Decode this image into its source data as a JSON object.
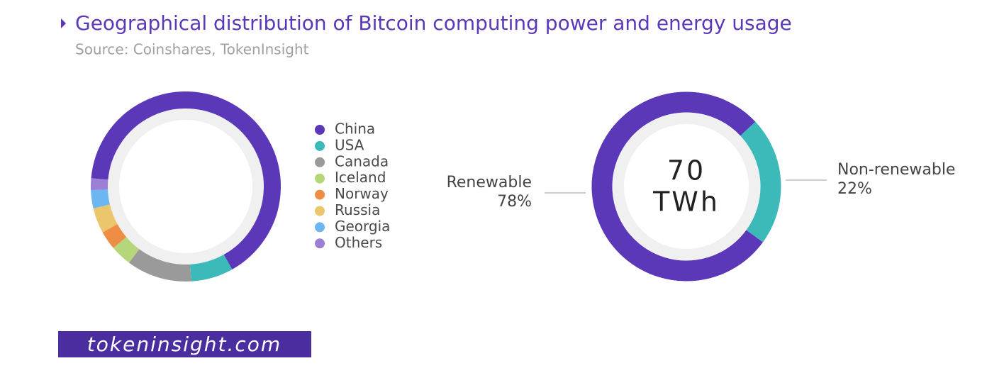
{
  "header": {
    "title": "Geographical distribution of Bitcoin computing power and energy usage",
    "source": "Source: Coinshares, TokenInsight"
  },
  "chart_data": [
    {
      "type": "donut",
      "legend": "right",
      "categories": [
        "China",
        "USA",
        "Canada",
        "Iceland",
        "Norway",
        "Russia",
        "Georgia",
        "Others"
      ],
      "values": [
        65.5,
        7.2,
        11.1,
        3.6,
        3.2,
        4.3,
        3.1,
        2.0
      ],
      "colors": [
        "#5a38b8",
        "#3cb9b9",
        "#9a9a9a",
        "#b6d67c",
        "#ee8d46",
        "#ecc66c",
        "#6db6f2",
        "#9c80d6"
      ]
    },
    {
      "type": "donut",
      "legend": "callouts",
      "categories": [
        "Renewable",
        "Non-renewable"
      ],
      "values": [
        78,
        22
      ],
      "value_labels": [
        "78%",
        "22%"
      ],
      "colors": [
        "#5a38b8",
        "#3cb9b9"
      ],
      "center_text": [
        "70",
        "TWh"
      ]
    }
  ],
  "footer": {
    "site": "tokeninsight.com"
  }
}
